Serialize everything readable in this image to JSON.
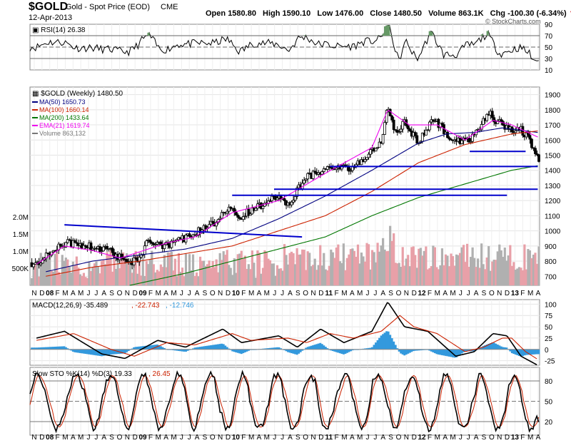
{
  "header": {
    "symbol": "$GOLD",
    "name": "Gold - Spot Price (EOD)",
    "exchange": "CME",
    "date": "12-Apr-2013",
    "open_label": "Open",
    "open": "1580.80",
    "high_label": "High",
    "high": "1590.10",
    "low_label": "Low",
    "low": "1476.00",
    "close_label": "Close",
    "close": "1480.50",
    "volume_label": "Volume",
    "volume": "863.1K",
    "chg_label": "Chg",
    "chg": "-100.30 (-6.34%)",
    "brand": "© StockCharts.com"
  },
  "colors": {
    "price": "#000000",
    "ma50": "#000080",
    "ma100": "#cc2200",
    "ma200": "#007700",
    "ema21": "#ee00ee",
    "support": "#0000cc",
    "volume_up": "#e8a0a8",
    "volume_down": "#b0b0b0",
    "macd_hist": "#3399dd",
    "stoch_k": "#000000",
    "stoch_d": "#cc2200",
    "rsi": "#000000",
    "rsi_fill": "#669966"
  },
  "chart_data": [
    {
      "type": "line",
      "panel": "rsi",
      "legend": "RSI(14) 26.38",
      "ylim": [
        10,
        90
      ],
      "y_ticks": [
        10,
        30,
        50,
        70,
        90
      ],
      "reference_lines": [
        30,
        50,
        70
      ],
      "last_value": 26.38
    },
    {
      "type": "candlestick",
      "panel": "price",
      "title": "$GOLD (Weekly) 1480.50",
      "ylim": [
        640,
        1950
      ],
      "y_ticks": [
        700,
        800,
        900,
        1000,
        1100,
        1200,
        1300,
        1400,
        1500,
        1600,
        1700,
        1800,
        1900
      ],
      "volume_ticks": [
        "500K",
        "1.0M",
        "1.5M",
        "2.0M"
      ],
      "x_ticks": [
        "N",
        "D",
        "08",
        "F",
        "M",
        "A",
        "M",
        "J",
        "J",
        "A",
        "S",
        "O",
        "N",
        "D",
        "09",
        "F",
        "M",
        "A",
        "M",
        "J",
        "J",
        "A",
        "S",
        "O",
        "N",
        "D",
        "10",
        "F",
        "M",
        "A",
        "M",
        "J",
        "J",
        "A",
        "S",
        "O",
        "N",
        "D",
        "11",
        "F",
        "M",
        "A",
        "M",
        "J",
        "J",
        "A",
        "S",
        "O",
        "N",
        "D",
        "12",
        "F",
        "M",
        "A",
        "M",
        "J",
        "J",
        "A",
        "S",
        "O",
        "N",
        "D",
        "13",
        "F",
        "M",
        "A"
      ],
      "legend": [
        {
          "name": "MA(50)",
          "value": "1650.73"
        },
        {
          "name": "MA(100)",
          "value": "1660.14"
        },
        {
          "name": "MA(200)",
          "value": "1433.64"
        },
        {
          "name": "EMA(21)",
          "value": "1619.74"
        },
        {
          "name": "Volume",
          "value": "863,132"
        }
      ],
      "series": [
        {
          "name": "close",
          "x": [
            2007.9,
            2008.2,
            2008.5,
            2008.7,
            2008.9,
            2009.0,
            2009.1,
            2009.3,
            2009.5,
            2009.8,
            2009.95,
            2010.1,
            2010.4,
            2010.5,
            2010.6,
            2010.8,
            2011.0,
            2011.3,
            2011.5,
            2011.6,
            2011.67,
            2011.75,
            2011.85,
            2012.0,
            2012.15,
            2012.3,
            2012.4,
            2012.5,
            2012.6,
            2012.75,
            2012.85,
            2012.95,
            2013.1,
            2013.2,
            2013.28
          ],
          "values": [
            790,
            920,
            900,
            860,
            780,
            820,
            940,
            900,
            950,
            1050,
            1150,
            1100,
            1200,
            1220,
            1180,
            1350,
            1400,
            1420,
            1520,
            1600,
            1820,
            1650,
            1720,
            1580,
            1750,
            1650,
            1580,
            1600,
            1620,
            1780,
            1720,
            1680,
            1670,
            1600,
            1480
          ]
        },
        {
          "name": "MA(50)",
          "x": [
            2008.0,
            2008.5,
            2009.0,
            2009.5,
            2010.0,
            2010.5,
            2011.0,
            2011.5,
            2012.0,
            2012.3,
            2012.6,
            2012.9,
            2013.28
          ],
          "values": [
            730,
            800,
            840,
            880,
            950,
            1080,
            1230,
            1400,
            1580,
            1640,
            1650,
            1680,
            1650
          ]
        },
        {
          "name": "MA(100)",
          "x": [
            2008.0,
            2008.5,
            2009.0,
            2009.5,
            2010.0,
            2010.5,
            2011.0,
            2011.5,
            2012.0,
            2012.5,
            2013.0,
            2013.28
          ],
          "values": [
            700,
            760,
            800,
            850,
            900,
            1000,
            1100,
            1260,
            1450,
            1570,
            1640,
            1660
          ]
        },
        {
          "name": "MA(200)",
          "x": [
            2008.9,
            2009.5,
            2010.0,
            2010.5,
            2011.0,
            2011.5,
            2012.0,
            2012.5,
            2013.0,
            2013.28
          ],
          "values": [
            640,
            720,
            800,
            880,
            960,
            1100,
            1220,
            1310,
            1400,
            1430
          ]
        },
        {
          "name": "EMA(21)",
          "x": [
            2007.9,
            2008.2,
            2008.5,
            2008.8,
            2009.0,
            2009.3,
            2009.6,
            2010.0,
            2010.5,
            2011.0,
            2011.5,
            2011.67,
            2011.9,
            2012.2,
            2012.5,
            2012.8,
            2013.0,
            2013.28
          ],
          "values": [
            780,
            900,
            870,
            820,
            860,
            920,
            960,
            1120,
            1200,
            1380,
            1550,
            1800,
            1700,
            1700,
            1600,
            1730,
            1700,
            1620
          ]
        }
      ],
      "support_lines": [
        {
          "x": [
            2008.2,
            2010.75
          ],
          "y": [
            1040,
            960
          ]
        },
        {
          "x": [
            2010.0,
            2012.95
          ],
          "y": [
            1235,
            1235
          ]
        },
        {
          "x": [
            2010.45,
            2013.28
          ],
          "y": [
            1275,
            1275
          ]
        },
        {
          "x": [
            2011.05,
            2013.28
          ],
          "y": [
            1425,
            1425
          ]
        },
        {
          "x": [
            2012.55,
            2013.15
          ],
          "y": [
            1525,
            1525
          ]
        }
      ]
    },
    {
      "type": "line",
      "panel": "macd",
      "legend": {
        "label": "MACD(12,26,9)",
        "macd": "-35.489",
        "signal": "-22.743",
        "hist": "-12.746"
      },
      "ylim": [
        -35,
        110
      ],
      "y_ticks": [
        -25,
        0,
        25,
        50,
        75,
        100
      ],
      "series": [
        {
          "name": "MACD",
          "x": [
            2007.9,
            2008.2,
            2008.6,
            2008.85,
            2009.2,
            2009.5,
            2009.9,
            2010.1,
            2010.5,
            2010.7,
            2010.95,
            2011.2,
            2011.5,
            2011.67,
            2011.85,
            2012.1,
            2012.4,
            2012.6,
            2012.8,
            2012.95,
            2013.1,
            2013.28
          ],
          "values": [
            25,
            40,
            -10,
            -20,
            20,
            5,
            45,
            15,
            30,
            5,
            45,
            15,
            40,
            105,
            50,
            40,
            -15,
            -5,
            35,
            30,
            -15,
            -35
          ]
        },
        {
          "name": "Signal",
          "x": [
            2007.9,
            2008.3,
            2008.7,
            2008.95,
            2009.3,
            2009.6,
            2010.0,
            2010.2,
            2010.6,
            2010.8,
            2011.05,
            2011.3,
            2011.6,
            2011.8,
            2011.95,
            2012.2,
            2012.5,
            2012.7,
            2012.9,
            2013.0,
            2013.15,
            2013.28
          ],
          "values": [
            20,
            35,
            0,
            -15,
            15,
            10,
            35,
            20,
            25,
            15,
            35,
            25,
            40,
            75,
            50,
            35,
            -5,
            5,
            25,
            25,
            -5,
            -22
          ]
        }
      ]
    },
    {
      "type": "line",
      "panel": "stochastic",
      "legend": {
        "label": "Slow STO %K(14) %D(3)",
        "k": "19.33",
        "d": "26.45"
      },
      "ylim": [
        0,
        100
      ],
      "y_ticks": [
        20,
        50,
        80
      ],
      "reference_lines": [
        20,
        50,
        80
      ],
      "last_k": 19.33,
      "last_d": 26.45
    }
  ]
}
